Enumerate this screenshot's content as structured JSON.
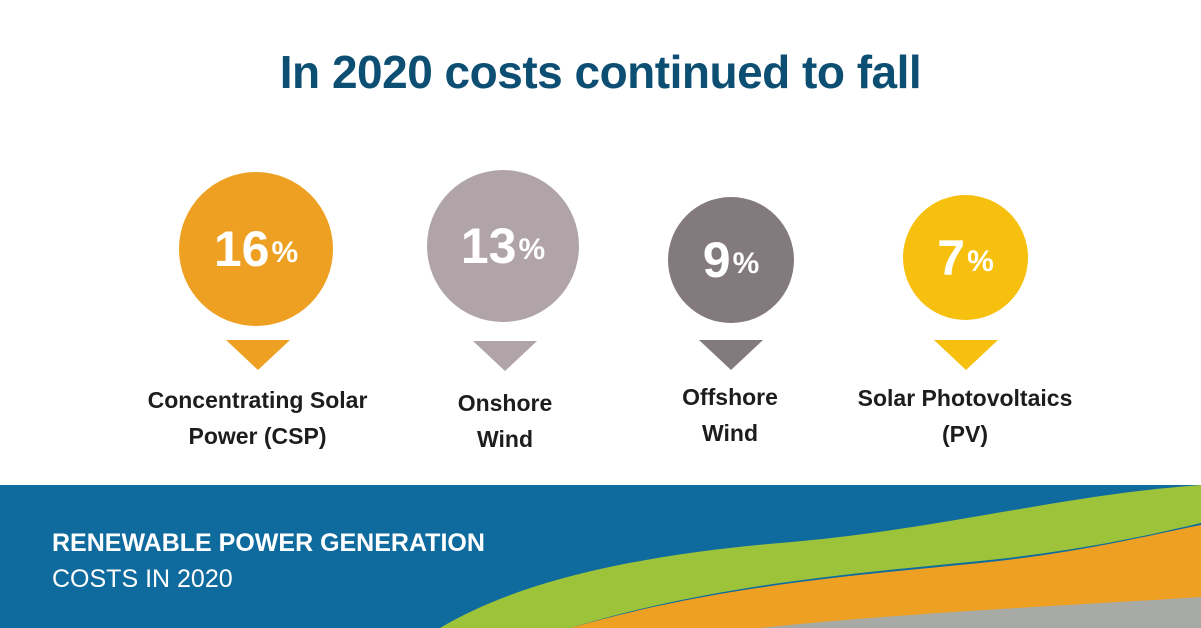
{
  "title": "In 2020 costs continued to fall",
  "items": [
    {
      "value": "16",
      "unit": "%",
      "label_line1": "Concentrating Solar",
      "label_line2": "Power (CSP)",
      "color": "#eea022"
    },
    {
      "value": "13",
      "unit": "%",
      "label_line1": "Onshore",
      "label_line2": "Wind",
      "color": "#b0a4a8"
    },
    {
      "value": "9",
      "unit": "%",
      "label_line1": "Offshore",
      "label_line2": "Wind",
      "color": "#837a7e"
    },
    {
      "value": "7",
      "unit": "%",
      "label_line1": "Solar Photovoltaics",
      "label_line2": "(PV)",
      "color": "#f7c00f"
    }
  ],
  "banner": {
    "line1": "RENEWABLE POWER GENERATION",
    "line2": "COSTS IN 2020",
    "background": "#0f6b9e",
    "wave_colors": [
      "#9dc33b",
      "#eea022",
      "#a7a9a4"
    ]
  }
}
